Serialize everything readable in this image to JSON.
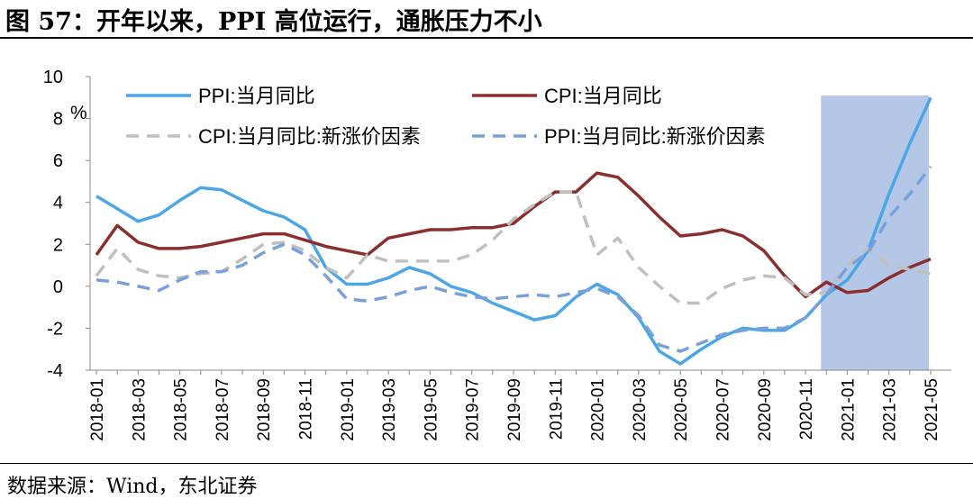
{
  "page": {
    "title": "图 57：开年以来，PPI 高位运行，通胀压力不小",
    "source": "数据来源：Wind，东北证券"
  },
  "chart_data": {
    "type": "line",
    "unit_label": "%",
    "ylim": [
      -4,
      10
    ],
    "y_ticks": [
      -4,
      -2,
      0,
      2,
      4,
      6,
      8,
      10
    ],
    "x_tick_labels": [
      "2018-01",
      "2018-03",
      "2018-05",
      "2018-07",
      "2018-09",
      "2018-11",
      "2019-01",
      "2019-03",
      "2019-05",
      "2019-07",
      "2019-09",
      "2019-11",
      "2020-01",
      "2020-03",
      "2020-05",
      "2020-07",
      "2020-09",
      "2020-11",
      "2021-01",
      "2021-03",
      "2021-05"
    ],
    "x": [
      "2018-01",
      "2018-02",
      "2018-03",
      "2018-04",
      "2018-05",
      "2018-06",
      "2018-07",
      "2018-08",
      "2018-09",
      "2018-10",
      "2018-11",
      "2018-12",
      "2019-01",
      "2019-02",
      "2019-03",
      "2019-04",
      "2019-05",
      "2019-06",
      "2019-07",
      "2019-08",
      "2019-09",
      "2019-10",
      "2019-11",
      "2019-12",
      "2020-01",
      "2020-02",
      "2020-03",
      "2020-04",
      "2020-05",
      "2020-06",
      "2020-07",
      "2020-08",
      "2020-09",
      "2020-10",
      "2020-11",
      "2020-12",
      "2021-01",
      "2021-02",
      "2021-03",
      "2021-04",
      "2021-05"
    ],
    "shaded_range": [
      "2020-12",
      "2021-05"
    ],
    "grid": false,
    "legend_position": "top",
    "series": [
      {
        "name": "PPI:当月同比",
        "color": "#4aa6e6",
        "style": "solid",
        "values": [
          4.3,
          3.7,
          3.1,
          3.4,
          4.1,
          4.7,
          4.6,
          4.1,
          3.6,
          3.3,
          2.7,
          0.9,
          0.1,
          0.1,
          0.4,
          0.9,
          0.6,
          0.0,
          -0.3,
          -0.8,
          -1.2,
          -1.6,
          -1.4,
          -0.5,
          0.1,
          -0.4,
          -1.5,
          -3.1,
          -3.7,
          -3.0,
          -2.4,
          -2.0,
          -2.1,
          -2.1,
          -1.5,
          -0.4,
          0.3,
          1.7,
          4.4,
          6.8,
          9.0
        ]
      },
      {
        "name": "CPI:当月同比",
        "color": "#8b2e2e",
        "style": "solid",
        "values": [
          1.5,
          2.9,
          2.1,
          1.8,
          1.8,
          1.9,
          2.1,
          2.3,
          2.5,
          2.5,
          2.2,
          1.9,
          1.7,
          1.5,
          2.3,
          2.5,
          2.7,
          2.7,
          2.8,
          2.8,
          3.0,
          3.8,
          4.5,
          4.5,
          5.4,
          5.2,
          4.3,
          3.3,
          2.4,
          2.5,
          2.7,
          2.4,
          1.7,
          0.5,
          -0.5,
          0.2,
          -0.3,
          -0.2,
          0.4,
          0.9,
          1.3
        ]
      },
      {
        "name": "CPI:当月同比:新涨价因素",
        "color": "#c0c0c0",
        "style": "dashed",
        "values": [
          0.5,
          1.8,
          0.8,
          0.5,
          0.4,
          0.6,
          0.7,
          1.3,
          2.0,
          2.1,
          1.7,
          0.9,
          0.4,
          1.5,
          1.2,
          1.2,
          1.2,
          1.2,
          1.5,
          2.2,
          3.2,
          3.9,
          4.5,
          4.5,
          1.5,
          2.3,
          0.9,
          0.0,
          -0.8,
          -0.8,
          -0.1,
          0.3,
          0.5,
          0.4,
          -0.4,
          -0.3,
          1.0,
          1.8,
          1.0,
          0.8,
          0.6
        ]
      },
      {
        "name": "PPI:当月同比:新涨价因素",
        "color": "#7aa0dc",
        "style": "dashed",
        "values": [
          0.3,
          0.2,
          0.0,
          -0.2,
          0.3,
          0.7,
          0.7,
          1.0,
          1.6,
          2.0,
          1.5,
          0.5,
          -0.6,
          -0.7,
          -0.5,
          -0.2,
          0.0,
          -0.3,
          -0.5,
          -0.6,
          -0.5,
          -0.4,
          -0.5,
          -0.3,
          -0.1,
          -0.5,
          -1.4,
          -2.8,
          -3.1,
          -2.7,
          -2.3,
          -2.1,
          -2.0,
          -2.0,
          -1.5,
          -0.4,
          0.9,
          1.6,
          3.3,
          4.4,
          5.7
        ]
      }
    ]
  }
}
